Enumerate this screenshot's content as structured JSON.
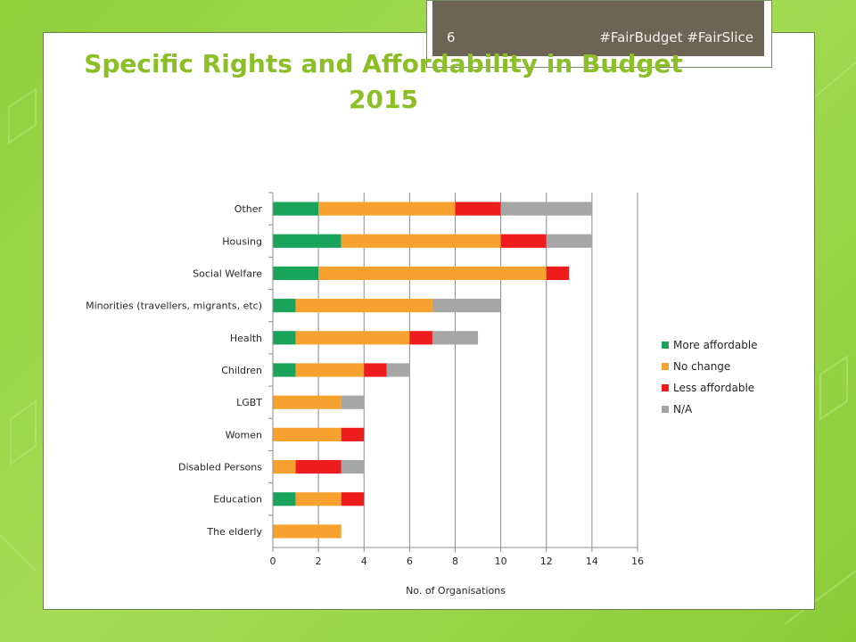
{
  "header": {
    "slide_number": "6",
    "hashtags": "#FairBudget #FairSlice"
  },
  "chart_data": {
    "type": "bar",
    "orientation": "horizontal",
    "stacked": true,
    "title": "Specific Rights and Affordability in Budget 2015",
    "xlabel": "No. of Organisations",
    "ylabel": "",
    "xlim": [
      0,
      16
    ],
    "x_ticks": [
      0,
      2,
      4,
      6,
      8,
      10,
      12,
      14,
      16
    ],
    "grid": "vertical",
    "legend_position": "right",
    "categories": [
      "Other",
      "Housing",
      "Social Welfare",
      "Minorities (travellers, migrants, etc)",
      "Health",
      "Children",
      "LGBT",
      "Women",
      "Disabled Persons",
      "Education",
      "The elderly"
    ],
    "series": [
      {
        "name": "More affordable",
        "color": "#1aa35a",
        "values": [
          2,
          3,
          2,
          1,
          1,
          1,
          0,
          0,
          0,
          1,
          0
        ]
      },
      {
        "name": "No change",
        "color": "#f7a12e",
        "values": [
          6,
          7,
          10,
          6,
          5,
          3,
          3,
          3,
          1,
          2,
          3
        ]
      },
      {
        "name": "Less affordable",
        "color": "#ee1c1c",
        "values": [
          2,
          2,
          1,
          0,
          1,
          1,
          0,
          1,
          2,
          1,
          0
        ]
      },
      {
        "name": "N/A",
        "color": "#a6a6a6",
        "values": [
          4,
          2,
          0,
          3,
          2,
          1,
          1,
          0,
          1,
          0,
          0
        ]
      }
    ]
  }
}
